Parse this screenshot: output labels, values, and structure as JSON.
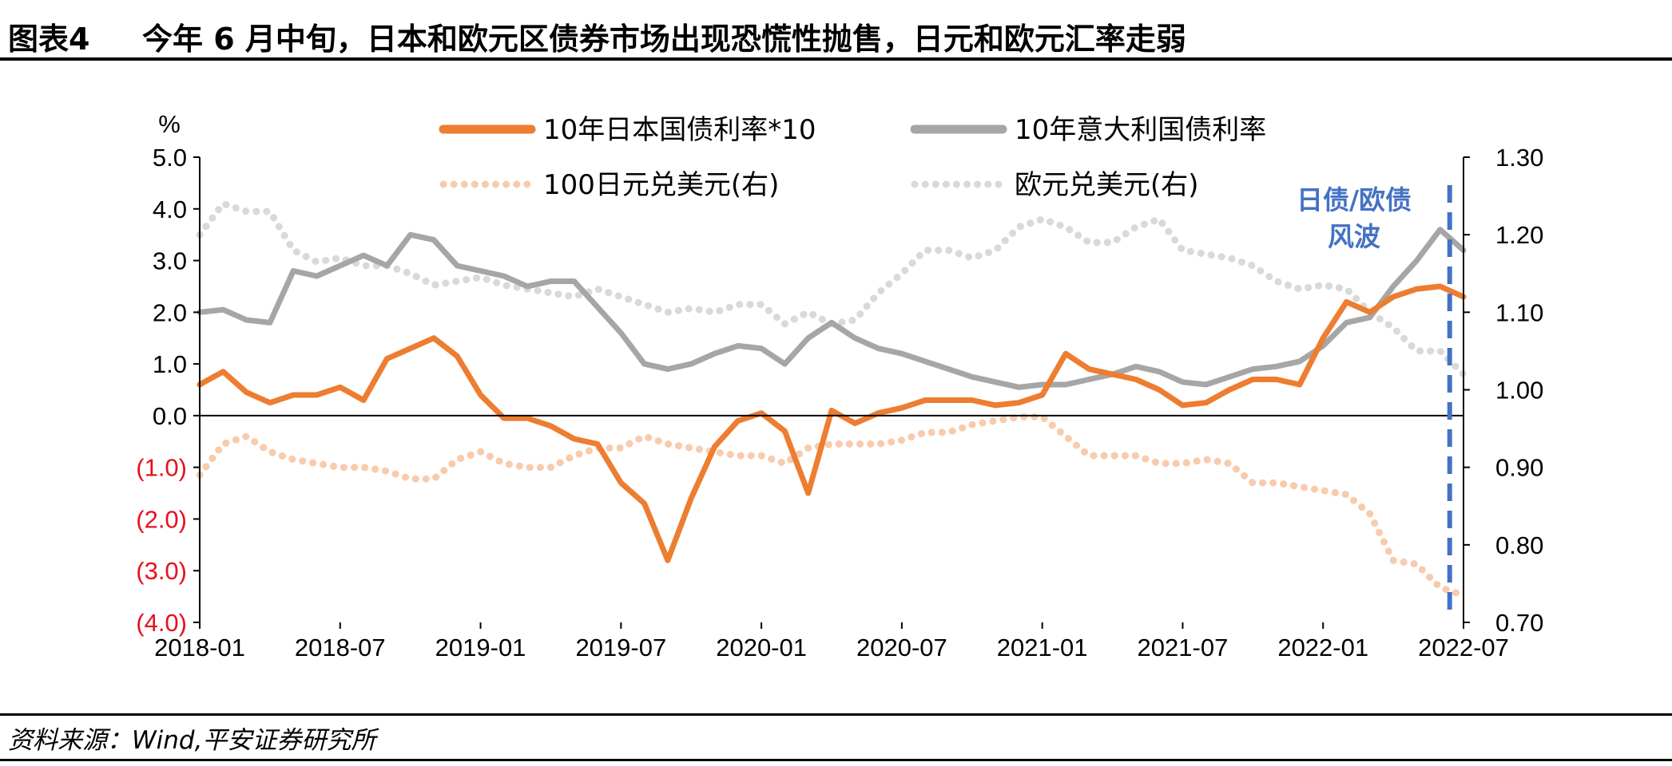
{
  "header": {
    "figure_label": "图表4",
    "title": "今年 6 月中旬，日本和欧元区债券市场出现恐慌性抛售，日元和欧元汇率走弱"
  },
  "footer": {
    "source": "资料来源：Wind,平安证券研究所"
  },
  "chart_data": {
    "type": "line",
    "x_tick_labels": [
      "2018-01",
      "2018-07",
      "2019-01",
      "2019-07",
      "2020-01",
      "2020-07",
      "2021-01",
      "2021-07",
      "2022-01",
      "2022-07"
    ],
    "x_range": [
      "2018-01",
      "2022-07"
    ],
    "y_left": {
      "unit_label": "%",
      "tick_labels": [
        "5.0",
        "4.0",
        "3.0",
        "2.0",
        "1.0",
        "0.0",
        "(1.0)",
        "(2.0)",
        "(3.0)",
        "(4.0)"
      ],
      "range": [
        -4,
        5
      ],
      "negative_color": "#e8101c"
    },
    "y_right": {
      "tick_labels": [
        "1.30",
        "1.20",
        "1.10",
        "1.00",
        "0.90",
        "0.80",
        "0.70"
      ],
      "range": [
        0.7,
        1.3
      ]
    },
    "grid": false,
    "legend_position": "top",
    "series": [
      {
        "name": "10年日本国债利率*10",
        "axis": "left",
        "style": "solid-thick",
        "color": "#ed7d31",
        "dates": [
          "2018-01",
          "2018-02",
          "2018-03",
          "2018-04",
          "2018-05",
          "2018-06",
          "2018-07",
          "2018-08",
          "2018-09",
          "2018-10",
          "2018-11",
          "2018-12",
          "2019-01",
          "2019-02",
          "2019-03",
          "2019-04",
          "2019-05",
          "2019-06",
          "2019-07",
          "2019-08",
          "2019-09",
          "2019-10",
          "2019-11",
          "2019-12",
          "2020-01",
          "2020-02",
          "2020-03",
          "2020-04",
          "2020-05",
          "2020-06",
          "2020-07",
          "2020-08",
          "2020-09",
          "2020-10",
          "2020-11",
          "2020-12",
          "2021-01",
          "2021-02",
          "2021-03",
          "2021-04",
          "2021-05",
          "2021-06",
          "2021-07",
          "2021-08",
          "2021-09",
          "2021-10",
          "2021-11",
          "2021-12",
          "2022-01",
          "2022-02",
          "2022-03",
          "2022-04",
          "2022-05",
          "2022-06",
          "2022-07"
        ],
        "values": [
          0.6,
          0.85,
          0.45,
          0.25,
          0.4,
          0.4,
          0.55,
          0.3,
          1.1,
          1.3,
          1.5,
          1.15,
          0.4,
          -0.05,
          -0.05,
          -0.2,
          -0.45,
          -0.55,
          -1.3,
          -1.7,
          -2.8,
          -1.6,
          -0.6,
          -0.1,
          0.05,
          -0.3,
          -1.5,
          0.1,
          -0.15,
          0.05,
          0.15,
          0.3,
          0.3,
          0.3,
          0.2,
          0.25,
          0.4,
          1.2,
          0.9,
          0.8,
          0.7,
          0.5,
          0.2,
          0.25,
          0.5,
          0.7,
          0.7,
          0.6,
          1.5,
          2.2,
          2.0,
          2.3,
          2.45,
          2.5,
          2.3
        ]
      },
      {
        "name": "10年意大利国债利率",
        "axis": "left",
        "style": "solid-thick",
        "color": "#a6a6a6",
        "dates": [
          "2018-01",
          "2018-02",
          "2018-03",
          "2018-04",
          "2018-05",
          "2018-06",
          "2018-07",
          "2018-08",
          "2018-09",
          "2018-10",
          "2018-11",
          "2018-12",
          "2019-01",
          "2019-02",
          "2019-03",
          "2019-04",
          "2019-05",
          "2019-06",
          "2019-07",
          "2019-08",
          "2019-09",
          "2019-10",
          "2019-11",
          "2019-12",
          "2020-01",
          "2020-02",
          "2020-03",
          "2020-04",
          "2020-05",
          "2020-06",
          "2020-07",
          "2020-08",
          "2020-09",
          "2020-10",
          "2020-11",
          "2020-12",
          "2021-01",
          "2021-02",
          "2021-03",
          "2021-04",
          "2021-05",
          "2021-06",
          "2021-07",
          "2021-08",
          "2021-09",
          "2021-10",
          "2021-11",
          "2021-12",
          "2022-01",
          "2022-02",
          "2022-03",
          "2022-04",
          "2022-05",
          "2022-06",
          "2022-07"
        ],
        "values": [
          2.0,
          2.05,
          1.85,
          1.8,
          2.8,
          2.7,
          2.9,
          3.1,
          2.9,
          3.5,
          3.4,
          2.9,
          2.8,
          2.7,
          2.5,
          2.6,
          2.6,
          2.1,
          1.6,
          1.0,
          0.9,
          1.0,
          1.2,
          1.35,
          1.3,
          1.0,
          1.5,
          1.8,
          1.5,
          1.3,
          1.2,
          1.05,
          0.9,
          0.75,
          0.65,
          0.55,
          0.6,
          0.6,
          0.7,
          0.8,
          0.95,
          0.85,
          0.65,
          0.6,
          0.75,
          0.9,
          0.95,
          1.05,
          1.35,
          1.8,
          1.9,
          2.5,
          3.0,
          3.6,
          3.2
        ]
      },
      {
        "name": "100日元兑美元(右)",
        "axis": "right",
        "style": "dotted",
        "color": "#f8cbad",
        "dates": [
          "2018-01",
          "2018-02",
          "2018-03",
          "2018-04",
          "2018-05",
          "2018-06",
          "2018-07",
          "2018-08",
          "2018-09",
          "2018-10",
          "2018-11",
          "2018-12",
          "2019-01",
          "2019-02",
          "2019-03",
          "2019-04",
          "2019-05",
          "2019-06",
          "2019-07",
          "2019-08",
          "2019-09",
          "2019-10",
          "2019-11",
          "2019-12",
          "2020-01",
          "2020-02",
          "2020-03",
          "2020-04",
          "2020-05",
          "2020-06",
          "2020-07",
          "2020-08",
          "2020-09",
          "2020-10",
          "2020-11",
          "2020-12",
          "2021-01",
          "2021-02",
          "2021-03",
          "2021-04",
          "2021-05",
          "2021-06",
          "2021-07",
          "2021-08",
          "2021-09",
          "2021-10",
          "2021-11",
          "2021-12",
          "2022-01",
          "2022-02",
          "2022-03",
          "2022-04",
          "2022-05",
          "2022-06",
          "2022-07"
        ],
        "values": [
          0.89,
          0.93,
          0.94,
          0.92,
          0.91,
          0.905,
          0.9,
          0.9,
          0.895,
          0.885,
          0.885,
          0.91,
          0.92,
          0.905,
          0.9,
          0.9,
          0.915,
          0.925,
          0.925,
          0.94,
          0.93,
          0.925,
          0.92,
          0.915,
          0.915,
          0.905,
          0.925,
          0.93,
          0.93,
          0.93,
          0.935,
          0.945,
          0.945,
          0.955,
          0.96,
          0.965,
          0.965,
          0.94,
          0.915,
          0.915,
          0.915,
          0.905,
          0.905,
          0.91,
          0.905,
          0.88,
          0.88,
          0.875,
          0.87,
          0.865,
          0.84,
          0.78,
          0.775,
          0.745,
          0.735
        ]
      },
      {
        "name": "欧元兑美元(右)",
        "axis": "right",
        "style": "dotted",
        "color": "#d9d9d9",
        "dates": [
          "2018-01",
          "2018-02",
          "2018-03",
          "2018-04",
          "2018-05",
          "2018-06",
          "2018-07",
          "2018-08",
          "2018-09",
          "2018-10",
          "2018-11",
          "2018-12",
          "2019-01",
          "2019-02",
          "2019-03",
          "2019-04",
          "2019-05",
          "2019-06",
          "2019-07",
          "2019-08",
          "2019-09",
          "2019-10",
          "2019-11",
          "2019-12",
          "2020-01",
          "2020-02",
          "2020-03",
          "2020-04",
          "2020-05",
          "2020-06",
          "2020-07",
          "2020-08",
          "2020-09",
          "2020-10",
          "2020-11",
          "2020-12",
          "2021-01",
          "2021-02",
          "2021-03",
          "2021-04",
          "2021-05",
          "2021-06",
          "2021-07",
          "2021-08",
          "2021-09",
          "2021-10",
          "2021-11",
          "2021-12",
          "2022-01",
          "2022-02",
          "2022-03",
          "2022-04",
          "2022-05",
          "2022-06",
          "2022-07"
        ],
        "values": [
          1.2,
          1.24,
          1.23,
          1.23,
          1.18,
          1.165,
          1.17,
          1.16,
          1.16,
          1.15,
          1.135,
          1.14,
          1.145,
          1.135,
          1.13,
          1.125,
          1.12,
          1.13,
          1.12,
          1.11,
          1.1,
          1.105,
          1.1,
          1.11,
          1.11,
          1.085,
          1.1,
          1.085,
          1.09,
          1.125,
          1.15,
          1.18,
          1.18,
          1.17,
          1.18,
          1.21,
          1.22,
          1.21,
          1.19,
          1.19,
          1.21,
          1.22,
          1.18,
          1.175,
          1.17,
          1.16,
          1.14,
          1.13,
          1.135,
          1.13,
          1.1,
          1.08,
          1.05,
          1.05,
          1.02
        ]
      }
    ],
    "annotation": {
      "text_line1": "日债/欧债",
      "text_line2": "风波",
      "at_date": "2022-06",
      "color": "#4472c4"
    }
  }
}
